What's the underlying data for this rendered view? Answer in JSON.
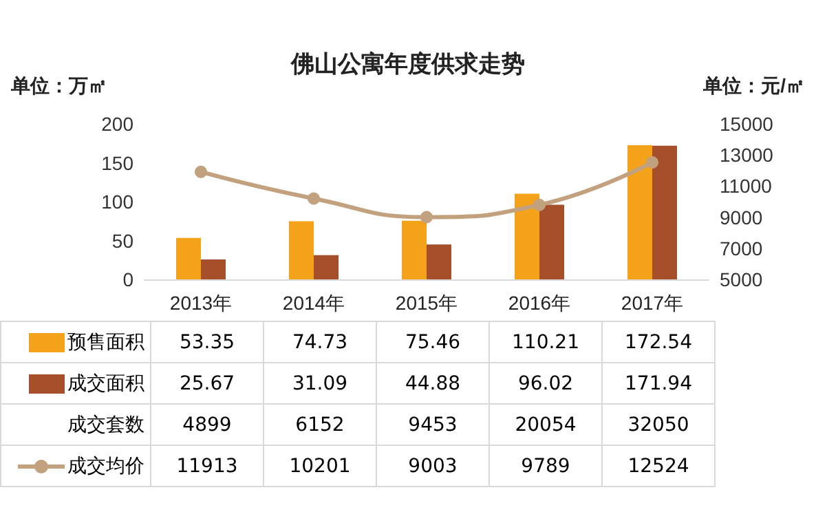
{
  "chart_data": {
    "type": "bar",
    "title": "佛山公寓年度供求走势",
    "ylabel": "单位：万㎡",
    "y2label": "单位：元/㎡",
    "categories": [
      "2013年",
      "2014年",
      "2015年",
      "2016年",
      "2017年"
    ],
    "series": [
      {
        "name": "预售面积",
        "color": "#f5a21b",
        "values": [
          53.35,
          74.73,
          75.46,
          110.21,
          172.54
        ]
      },
      {
        "name": "成交面积",
        "color": "#a5502a",
        "values": [
          25.67,
          31.09,
          44.88,
          96.02,
          171.94
        ]
      },
      {
        "name": "成交套数",
        "type": "other",
        "values": [
          null,
          null,
          null,
          null,
          null
        ],
        "value_labels": [
          "4899",
          "6152",
          "9453",
          "20054",
          "32050"
        ]
      },
      {
        "name": "成交均价",
        "type": "line",
        "axis": "y2",
        "color": "#c2a17e",
        "values": [
          11913,
          10201,
          9003,
          9789,
          12524
        ]
      }
    ],
    "ylim": [
      0,
      200
    ],
    "yticks": [
      0,
      50,
      100,
      150,
      200
    ],
    "y2lim": [
      5000,
      15000
    ],
    "y2ticks": [
      5000,
      7000,
      9000,
      11000,
      13000,
      15000
    ],
    "grid": false,
    "legend": "bottom",
    "data_labels": true,
    "marker": "circle",
    "line_style": "solid"
  }
}
